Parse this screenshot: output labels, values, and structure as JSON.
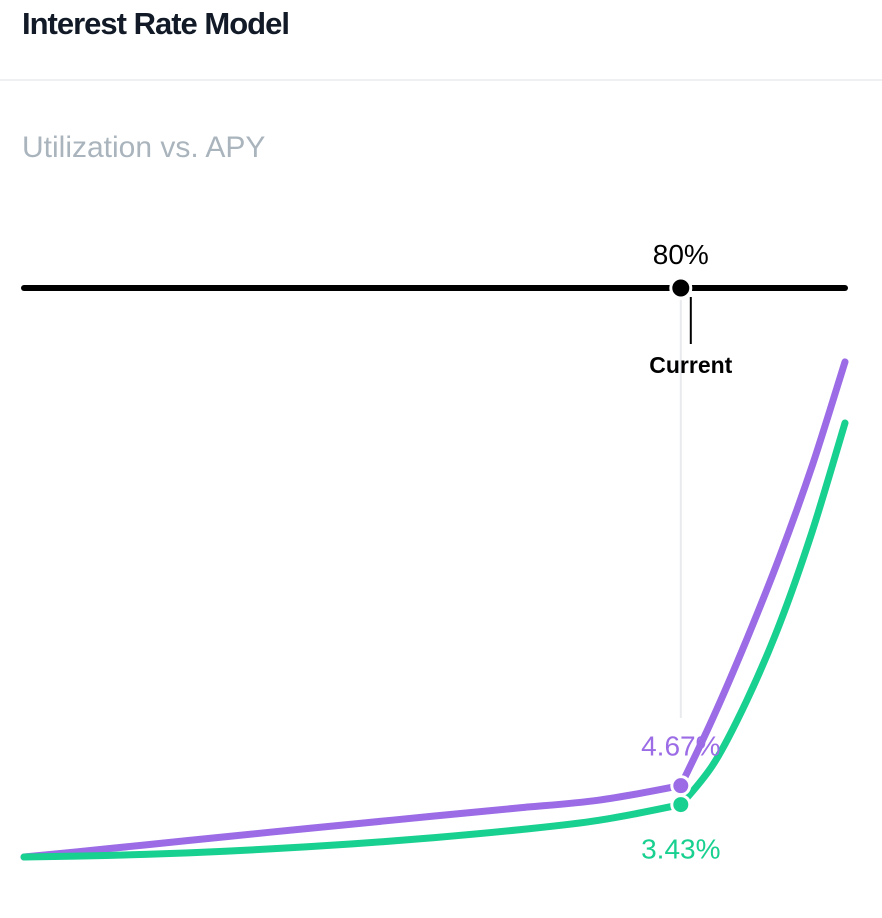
{
  "header": {
    "title": "Interest Rate Model"
  },
  "chart_data": {
    "type": "line",
    "title": "Utilization vs. APY",
    "xlabel": "",
    "ylabel": "",
    "x_unit": "%",
    "xlim": [
      0,
      100
    ],
    "current": {
      "utilization": 80,
      "utilization_label": "80%",
      "marker_label": "Current"
    },
    "series": [
      {
        "color": "#9b6ce6",
        "current_value": 4.67,
        "current_label": "4.67%",
        "points": [
          [
            0,
            0
          ],
          [
            10,
            0.53
          ],
          [
            20,
            1.08
          ],
          [
            30,
            1.62
          ],
          [
            40,
            2.15
          ],
          [
            50,
            2.68
          ],
          [
            60,
            3.2
          ],
          [
            70,
            3.72
          ],
          [
            80,
            4.67
          ],
          [
            84,
            9.2
          ],
          [
            88,
            14.2
          ],
          [
            92,
            19.6
          ],
          [
            96,
            25.6
          ],
          [
            100,
            32.4
          ]
        ]
      },
      {
        "color": "#18d08f",
        "current_value": 3.43,
        "current_label": "3.43%",
        "points": [
          [
            0,
            0
          ],
          [
            10,
            0.1
          ],
          [
            20,
            0.27
          ],
          [
            30,
            0.53
          ],
          [
            40,
            0.86
          ],
          [
            50,
            1.27
          ],
          [
            60,
            1.77
          ],
          [
            70,
            2.4
          ],
          [
            80,
            3.43
          ],
          [
            84,
            6.1
          ],
          [
            88,
            10.2
          ],
          [
            92,
            15.2
          ],
          [
            96,
            21.3
          ],
          [
            100,
            28.4
          ]
        ]
      }
    ],
    "colors": {
      "axis": "#000000",
      "guide": "#e8eaed"
    }
  }
}
